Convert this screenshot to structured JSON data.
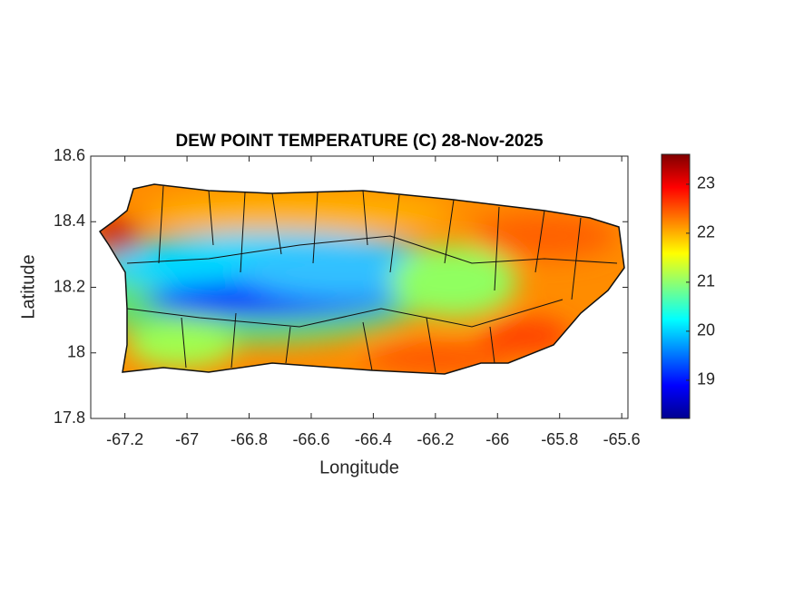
{
  "chart_data": {
    "type": "heatmap",
    "title": "DEW POINT TEMPERATURE (C) 28-Nov-2025",
    "xlabel": "Longitude",
    "ylabel": "Latitude",
    "xlim": [
      -67.31,
      -65.58
    ],
    "xticks": [
      -67.2,
      -67,
      -66.8,
      -66.6,
      -66.4,
      -66.2,
      -66,
      -65.8,
      -65.6
    ],
    "ylim": [
      17.8,
      18.6
    ],
    "yticks": [
      17.8,
      18,
      18.2,
      18.4,
      18.6
    ],
    "colormap": "jet",
    "clim": [
      18.22,
      23.61
    ],
    "cticks": [
      19,
      20,
      21,
      22,
      23
    ]
  }
}
